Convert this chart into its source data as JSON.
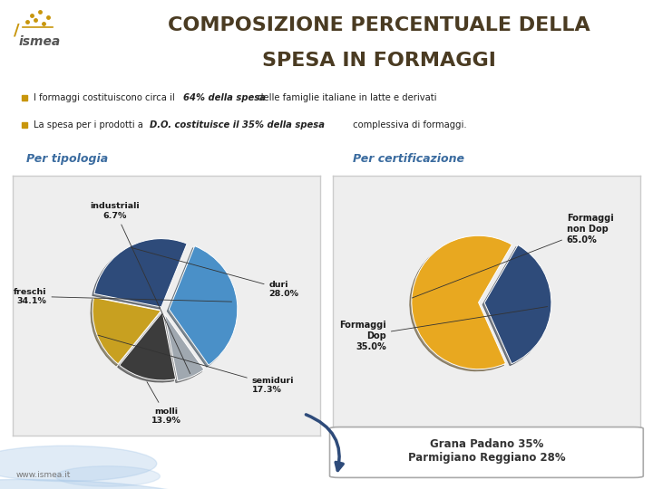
{
  "title_line1": "COMPOSIZIONE PERCENTUALE DELLA",
  "title_line2": "SPESA IN FORMAGGI",
  "title_bg_color": "#E8A820",
  "title_text_color": "#4A3B22",
  "bg_color": "#FFFFFF",
  "content_bg_color": "#E0E0E0",
  "bullet_color": "#C8960C",
  "subtitle_left": "Per tipologia",
  "subtitle_right": "Per certificazione",
  "subtitle_color": "#3A6B9F",
  "pie1_values": [
    28.0,
    17.3,
    13.9,
    6.7,
    34.1
  ],
  "pie1_colors": [
    "#2E4B7A",
    "#C8A020",
    "#3C3C3C",
    "#A0A8B0",
    "#4A90C8"
  ],
  "pie1_explode": [
    0.05,
    0.03,
    0.03,
    0.06,
    0.09
  ],
  "pie1_startangle": 68,
  "pie1_label_duri": "duri\n28.0%",
  "pie1_label_semiduri": "semiduri\n17.3%",
  "pie1_label_molli": "molli\n13.9%",
  "pie1_label_industriali": "industriali\n6.7%",
  "pie1_label_freschi": "freschi\n34.1%",
  "pie2_values": [
    65.0,
    35.0
  ],
  "pie2_colors": [
    "#E8A820",
    "#2E4B7A"
  ],
  "pie2_explode": [
    0.02,
    0.07
  ],
  "pie2_startangle": 60,
  "pie2_label_nondop": "Formaggi\nnon Dop\n65.0%",
  "pie2_label_dop": "Formaggi\nDop\n35.0%",
  "annotation_text": "Grana Padano 35%\nParmigiano Reggiano 28%",
  "footer_text": "www.ismea.it",
  "panel_bg": "#EEEEEE",
  "panel_border": "#CCCCCC",
  "arrow_color": "#2E4B7A",
  "circle_color": "#A8C8E8",
  "logo_color": "#C8960C"
}
